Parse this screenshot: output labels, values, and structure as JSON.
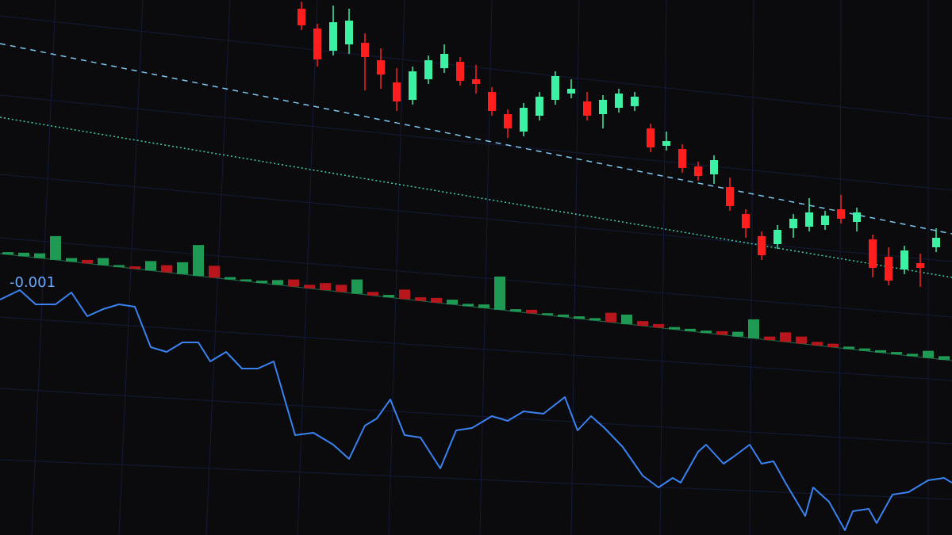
{
  "chart_data": [
    {
      "type": "candlestick",
      "x": [
        19,
        20,
        21,
        22,
        23,
        24,
        25,
        26,
        27,
        28,
        29,
        30,
        31,
        32,
        33,
        34,
        35,
        36,
        37,
        38,
        39,
        40,
        41,
        42,
        43,
        44,
        45,
        46,
        47,
        48,
        49,
        50,
        51,
        52,
        53,
        54,
        55,
        56,
        57,
        58,
        59
      ],
      "open": [
        95,
        88,
        80,
        84,
        86,
        80,
        72,
        66,
        76,
        82,
        86,
        80,
        76,
        68,
        62,
        70,
        78,
        82,
        80,
        76,
        80,
        82,
        74,
        68,
        68,
        62,
        60,
        56,
        46,
        38,
        36,
        44,
        46,
        48,
        56,
        52,
        46,
        40,
        36,
        40,
        48
      ],
      "close": [
        88,
        75,
        92,
        94,
        80,
        74,
        64,
        78,
        84,
        88,
        78,
        78,
        68,
        62,
        72,
        78,
        88,
        84,
        74,
        82,
        86,
        86,
        66,
        70,
        60,
        58,
        66,
        48,
        40,
        30,
        42,
        48,
        52,
        52,
        52,
        56,
        34,
        30,
        44,
        38,
        52
      ],
      "high": [
        98,
        90,
        99,
        99,
        90,
        85,
        78,
        80,
        86,
        92,
        88,
        86,
        78,
        70,
        74,
        80,
        90,
        88,
        84,
        84,
        88,
        88,
        76,
        74,
        70,
        64,
        68,
        60,
        48,
        40,
        44,
        50,
        58,
        54,
        62,
        58,
        48,
        44,
        46,
        44,
        56
      ],
      "low": [
        86,
        72,
        78,
        80,
        66,
        68,
        60,
        64,
        74,
        80,
        76,
        74,
        66,
        58,
        60,
        68,
        76,
        80,
        72,
        70,
        78,
        80,
        64,
        66,
        58,
        56,
        56,
        46,
        36,
        28,
        34,
        40,
        44,
        46,
        50,
        48,
        30,
        28,
        34,
        30,
        46
      ],
      "up_color": "#3cf0a4",
      "down_color": "#ff1e1e",
      "xlim": [
        0,
        60
      ],
      "ylim": [
        0,
        100
      ]
    },
    {
      "type": "bar",
      "x": [
        0,
        1,
        2,
        3,
        4,
        5,
        6,
        7,
        8,
        9,
        10,
        11,
        12,
        13,
        14,
        15,
        16,
        17,
        18,
        19,
        20,
        21,
        22,
        23,
        24,
        25,
        26,
        27,
        28,
        29,
        30,
        31,
        32,
        33,
        34,
        35,
        36,
        37,
        38,
        39,
        40,
        41,
        42,
        43,
        44,
        45,
        46,
        47,
        48,
        49,
        50,
        51,
        52,
        53,
        54,
        55,
        56,
        57,
        58,
        59
      ],
      "values": [
        1,
        1.5,
        2,
        10,
        1.5,
        1.5,
        3,
        0.8,
        1,
        4,
        3,
        5,
        13,
        5,
        1,
        0.8,
        1,
        2,
        3,
        1.5,
        3,
        3,
        6,
        1.5,
        1,
        4,
        1.5,
        2,
        2,
        1,
        1.5,
        14,
        1,
        1.5,
        0.8,
        1,
        1,
        1,
        4,
        4,
        2,
        1.5,
        1,
        1,
        1,
        1.5,
        2,
        8,
        1.5,
        4,
        3,
        1.5,
        1.5,
        1,
        1,
        1,
        1,
        1,
        3,
        1.5
      ],
      "colors": [
        "#1f9a55",
        "#1f9a55",
        "#1f9a55",
        "#1f9a55",
        "#1f9a55",
        "#b8161c",
        "#1f9a55",
        "#1f9a55",
        "#b8161c",
        "#1f9a55",
        "#b8161c",
        "#1f9a55",
        "#1f9a55",
        "#b8161c",
        "#1f9a55",
        "#1f9a55",
        "#1f9a55",
        "#1f9a55",
        "#b8161c",
        "#b8161c",
        "#b8161c",
        "#b8161c",
        "#1f9a55",
        "#b8161c",
        "#1f9a55",
        "#b8161c",
        "#b8161c",
        "#b8161c",
        "#1f9a55",
        "#1f9a55",
        "#1f9a55",
        "#1f9a55",
        "#1f9a55",
        "#b8161c",
        "#1f9a55",
        "#1f9a55",
        "#1f9a55",
        "#1f9a55",
        "#b8161c",
        "#1f9a55",
        "#b8161c",
        "#b8161c",
        "#1f9a55",
        "#1f9a55",
        "#1f9a55",
        "#b8161c",
        "#1f9a55",
        "#1f9a55",
        "#b8161c",
        "#b8161c",
        "#b8161c",
        "#b8161c",
        "#b8161c",
        "#1f9a55",
        "#1f9a55",
        "#1f9a55",
        "#1f9a55",
        "#1f9a55",
        "#1f9a55",
        "#1f9a55"
      ],
      "xlim": [
        0,
        60
      ],
      "ylim": [
        0,
        20
      ]
    },
    {
      "type": "line",
      "x": [
        0,
        1.25,
        2.25,
        3.5,
        4.5,
        5.5,
        6.5,
        7.5,
        8.5,
        9.5,
        10.5,
        11.5,
        12.5,
        13.25,
        14.25,
        15.25,
        16.25,
        17.25,
        18.6,
        19.75,
        21,
        22,
        23,
        23.75,
        24.6,
        25.5,
        26.5,
        27.75,
        28.75,
        29.75,
        31,
        32,
        33,
        34.25,
        35.6,
        36.4,
        37.25,
        38.1,
        39.25,
        40.5,
        41.5,
        42.4,
        42.9,
        44,
        44.5,
        45.6,
        46.25,
        47.25,
        48,
        48.75,
        49.5,
        50.75,
        51.25,
        52.25,
        53.25,
        53.75,
        54.75,
        55.25,
        56.25,
        57.25,
        58.5,
        59.5,
        60
      ],
      "values": [
        -0.0017,
        -0.0013,
        -0.0019,
        -0.0019,
        -0.0014,
        -0.0024,
        -0.0021,
        -0.0019,
        -0.002,
        -0.0037,
        -0.0039,
        -0.0035,
        -0.0035,
        -0.0043,
        -0.0039,
        -0.0046,
        -0.0046,
        -0.0043,
        -0.0074,
        -0.0073,
        -0.0078,
        -0.0084,
        -0.007,
        -0.0067,
        -0.0059,
        -0.0074,
        -0.0075,
        -0.0088,
        -0.0072,
        -0.0071,
        -0.0066,
        -0.0068,
        -0.0064,
        -0.0065,
        -0.0058,
        -0.0072,
        -0.0066,
        -0.0071,
        -0.0079,
        -0.0091,
        -0.0096,
        -0.0092,
        -0.0094,
        -0.0081,
        -0.0078,
        -0.0086,
        -0.0083,
        -0.0078,
        -0.0086,
        -0.0085,
        -0.0094,
        -0.0108,
        -0.0096,
        -0.0102,
        -0.0114,
        -0.0106,
        -0.0105,
        -0.0111,
        -0.0099,
        -0.0098,
        -0.0093,
        -0.0092,
        -0.0094
      ],
      "color": "#3a82f0",
      "xlim": [
        0,
        60
      ],
      "ylim": [
        -0.0116,
        0.0002
      ],
      "yticks": [
        {
          "value": -0.001,
          "label": "-0.001"
        }
      ]
    }
  ]
}
